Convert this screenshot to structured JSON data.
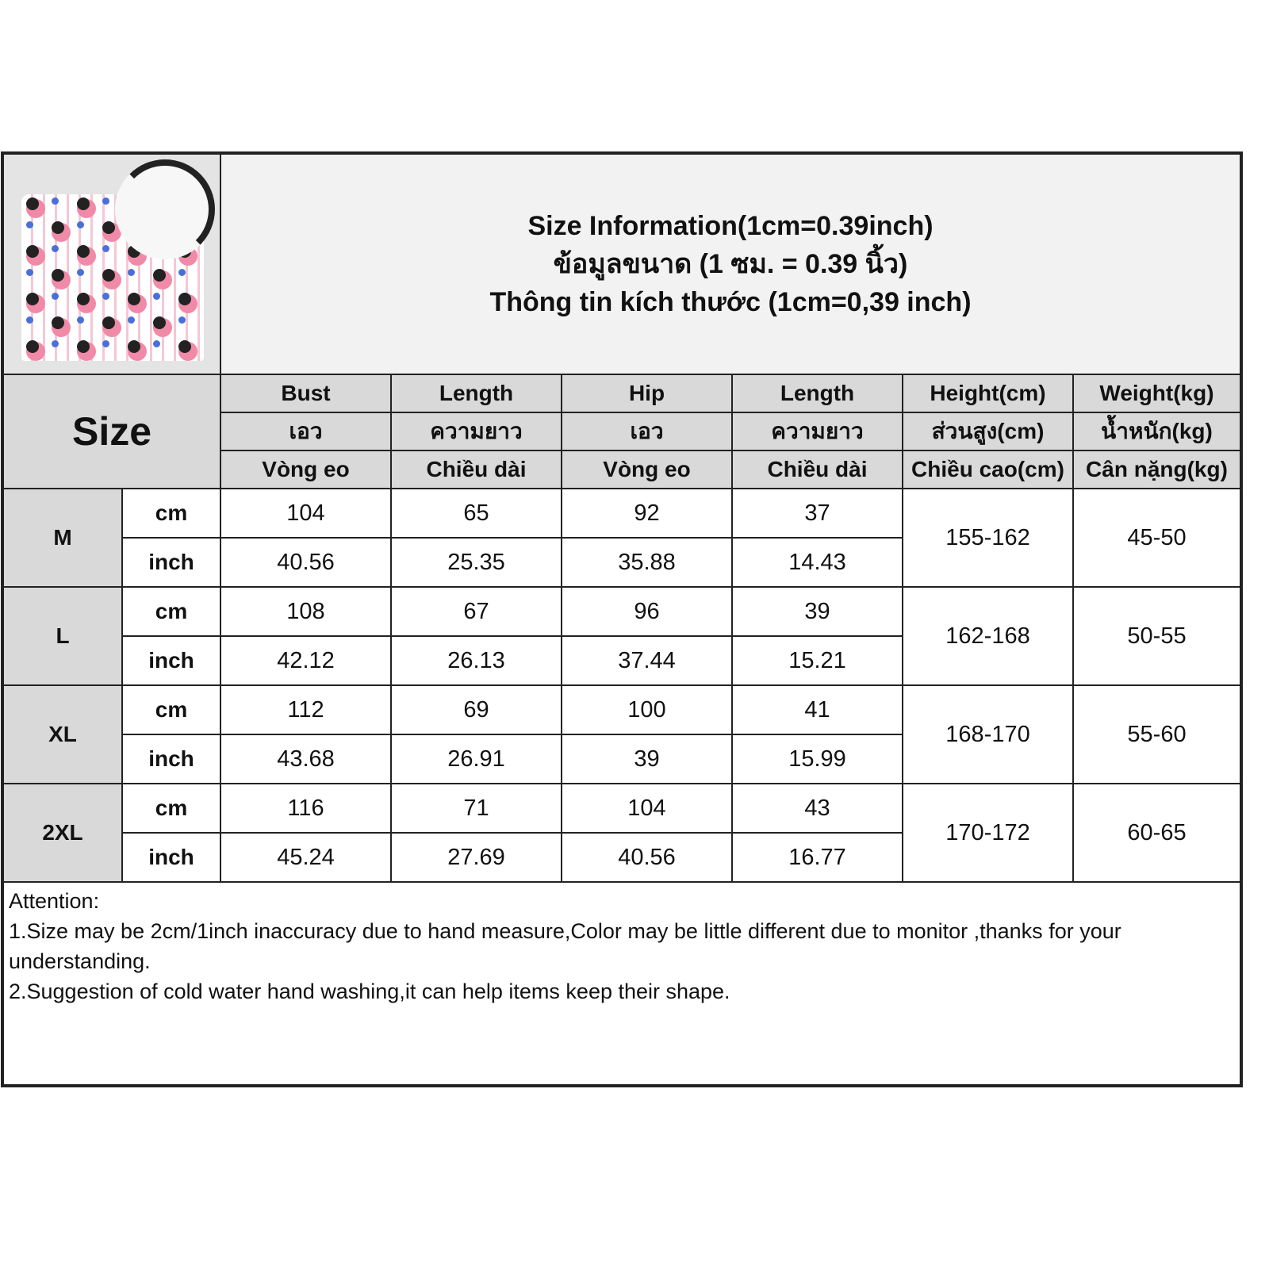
{
  "title_lines": [
    "Size Information(1cm=0.39inch)",
    "ข้อมูลขนาด (1 ซม. = 0.39 นิ้ว)",
    "Thông tin kích thước (1cm=0,39 inch)"
  ],
  "size_label": "Size",
  "columns": [
    {
      "en": "Bust",
      "th": "เอว",
      "vi": "Vòng eo"
    },
    {
      "en": "Length",
      "th": "ความยาว",
      "vi": "Chiều dài"
    },
    {
      "en": "Hip",
      "th": "เอว",
      "vi": "Vòng eo"
    },
    {
      "en": "Length",
      "th": "ความยาว",
      "vi": "Chiều dài"
    },
    {
      "en": "Height(cm)",
      "th": "ส่วนสูง(cm)",
      "vi": "Chiều cao(cm)"
    },
    {
      "en": "Weight(kg)",
      "th": "น้ำหนัก(kg)",
      "vi": "Cân nặng(kg)"
    }
  ],
  "units": {
    "cm": "cm",
    "inch": "inch"
  },
  "rows": [
    {
      "size": "M",
      "cm": [
        "104",
        "65",
        "92",
        "37"
      ],
      "inch": [
        "40.56",
        "25.35",
        "35.88",
        "14.43"
      ],
      "height": "155-162",
      "weight": "45-50"
    },
    {
      "size": "L",
      "cm": [
        "108",
        "67",
        "96",
        "39"
      ],
      "inch": [
        "42.12",
        "26.13",
        "37.44",
        "15.21"
      ],
      "height": "162-168",
      "weight": "50-55"
    },
    {
      "size": "XL",
      "cm": [
        "112",
        "69",
        "100",
        "41"
      ],
      "inch": [
        "43.68",
        "26.91",
        "39",
        "15.99"
      ],
      "height": "168-170",
      "weight": "55-60"
    },
    {
      "size": "2XL",
      "cm": [
        "116",
        "71",
        "104",
        "43"
      ],
      "inch": [
        "45.24",
        "27.69",
        "40.56",
        "16.77"
      ],
      "height": "170-172",
      "weight": "60-65"
    }
  ],
  "notes": {
    "heading": "Attention:",
    "lines": [
      "1.Size may be 2cm/1inch inaccuracy due to hand measure,Color may be little different due to monitor ,thanks for your understanding.",
      "2.Suggestion of cold water hand washing,it can help items keep their shape."
    ]
  },
  "colors": {
    "header_gray": "#d9d9d9",
    "title_bg": "#f2f2f2",
    "border": "#222222"
  }
}
